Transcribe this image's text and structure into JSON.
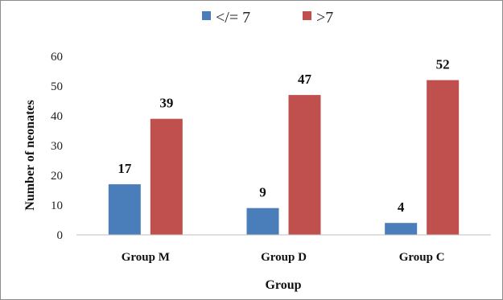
{
  "chart_data": {
    "type": "bar",
    "title": "",
    "xlabel": "Group",
    "ylabel": "Number of neonates",
    "categories": [
      "Group M",
      "Group D",
      "Group C"
    ],
    "series": [
      {
        "name": "</= 7",
        "values": [
          17,
          9,
          4
        ],
        "color": "#4a7ebb"
      },
      {
        "name": ">7",
        "values": [
          39,
          47,
          52
        ],
        "color": "#c0504d"
      }
    ],
    "ylim": [
      0,
      60
    ],
    "yticks": [
      0,
      10,
      20,
      30,
      40,
      50,
      60
    ],
    "grid": false,
    "legend": "top-center",
    "data_labels": true
  }
}
